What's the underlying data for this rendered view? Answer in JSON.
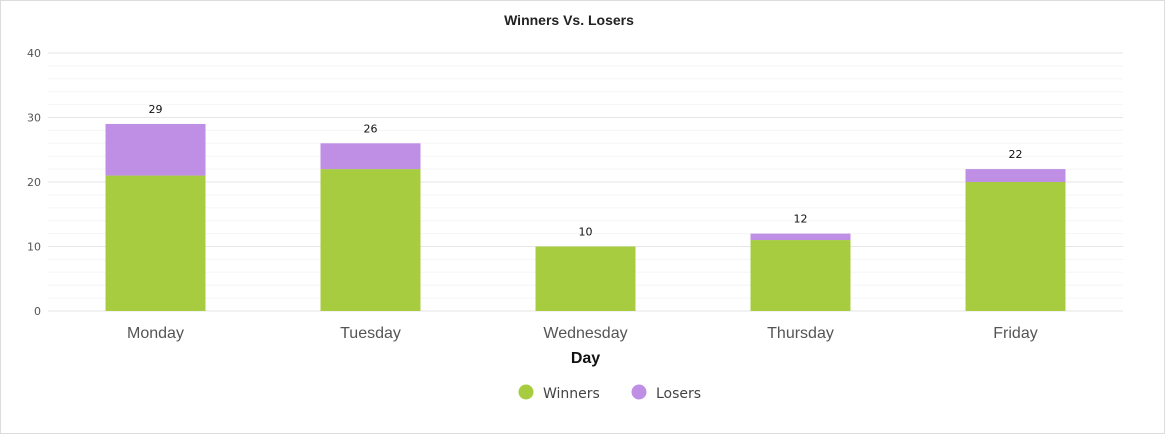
{
  "chart_data": {
    "type": "bar",
    "stacked": true,
    "title": "Winners Vs. Losers",
    "xlabel": "Day",
    "ylabel": "",
    "categories": [
      "Monday",
      "Tuesday",
      "Wednesday",
      "Thursday",
      "Friday"
    ],
    "series": [
      {
        "name": "Winners",
        "values": [
          21,
          22,
          10,
          11,
          20
        ],
        "color": "#a8cc40"
      },
      {
        "name": "Losers",
        "values": [
          8,
          4,
          0,
          1,
          2
        ],
        "color": "#bf8fe6"
      }
    ],
    "totals": [
      29,
      26,
      10,
      12,
      22
    ],
    "ylim": [
      0,
      40
    ],
    "yticks": [
      0,
      10,
      20,
      30,
      40
    ],
    "grid": true,
    "legend": "bottom-center"
  }
}
